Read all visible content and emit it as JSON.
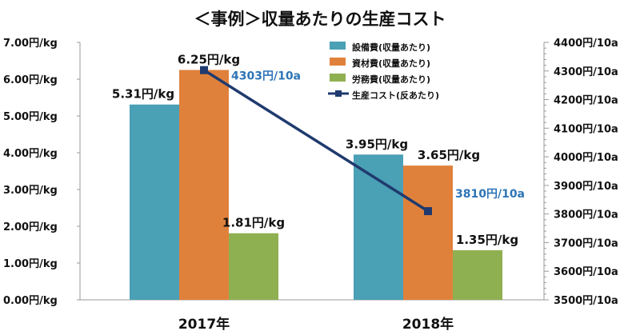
{
  "chart_data": {
    "type": "bar",
    "title": "＜事例＞収量あたりの生産コスト",
    "categories": [
      "2017年",
      "2018年"
    ],
    "series": [
      {
        "name": "設備費(収量あたり)",
        "values": [
          5.31,
          3.95
        ],
        "labels": [
          "5.31円/kg",
          "3.95円/kg"
        ],
        "color": "#4aa0b5"
      },
      {
        "name": "資材費(収量あたり)",
        "values": [
          6.25,
          3.65
        ],
        "labels": [
          "6.25円/kg",
          "3.65円/kg"
        ],
        "color": "#e0813b"
      },
      {
        "name": "労務費(収量あたり)",
        "values": [
          1.81,
          1.35
        ],
        "labels": [
          "1.81円/kg",
          "1.35円/kg"
        ],
        "color": "#8fb050"
      }
    ],
    "line_series": {
      "name": "生産コスト(反あたり)",
      "axis": "right",
      "values": [
        4303,
        3810
      ],
      "labels": [
        "4303円/10a",
        "3810円/10a"
      ],
      "color": "#1f3a6e"
    },
    "y_left": {
      "range": [
        0,
        7
      ],
      "tick_labels": [
        "0.00円/kg",
        "1.00円/kg",
        "2.00円/kg",
        "3.00円/kg",
        "4.00円/kg",
        "5.00円/kg",
        "6.00円/kg",
        "7.00円/kg"
      ]
    },
    "y_right": {
      "range": [
        3500,
        4400
      ],
      "tick_labels": [
        "3500円/10a",
        "3600円/10a",
        "3700円/10a",
        "3800円/10a",
        "3900円/10a",
        "4000円/10a",
        "4100円/10a",
        "4200円/10a",
        "4300円/10a",
        "4400円/10a"
      ]
    },
    "legend_position": "top-right",
    "grid": false
  }
}
